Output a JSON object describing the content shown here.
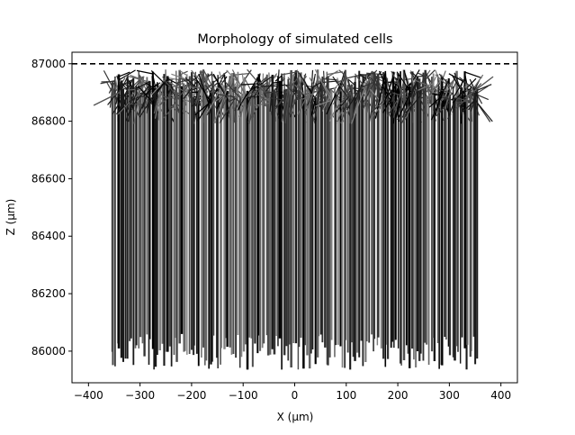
{
  "chart_data": {
    "type": "line",
    "title": "Morphology of simulated cells",
    "xlabel": "X (µm)",
    "ylabel": "Z (µm)",
    "xlim": [
      -432,
      432
    ],
    "ylim": [
      85890,
      87040
    ],
    "xticks": [
      -400,
      -300,
      -200,
      -100,
      0,
      100,
      200,
      300,
      400
    ],
    "yticks": [
      86000,
      86200,
      86400,
      86600,
      86800,
      87000
    ],
    "xtick_labels": [
      "−400",
      "−300",
      "−200",
      "−100",
      "0",
      "100",
      "200",
      "300",
      "400"
    ],
    "ytick_labels": [
      "86000",
      "86200",
      "86400",
      "86600",
      "86800",
      "87000"
    ],
    "grid": false,
    "reference_line": {
      "y": 87000,
      "style": "dashed",
      "color": "#000000"
    },
    "cells": {
      "x_range": [
        -355,
        355
      ],
      "soma_z_range": [
        85935,
        86060
      ],
      "dendrite_top_z_range": [
        86880,
        86980
      ],
      "tuft_z_range": [
        86790,
        86980
      ],
      "colors": [
        "#000000",
        "#1a1a1a",
        "#333333",
        "#4d4d4d",
        "#666666",
        "#808080"
      ]
    }
  }
}
